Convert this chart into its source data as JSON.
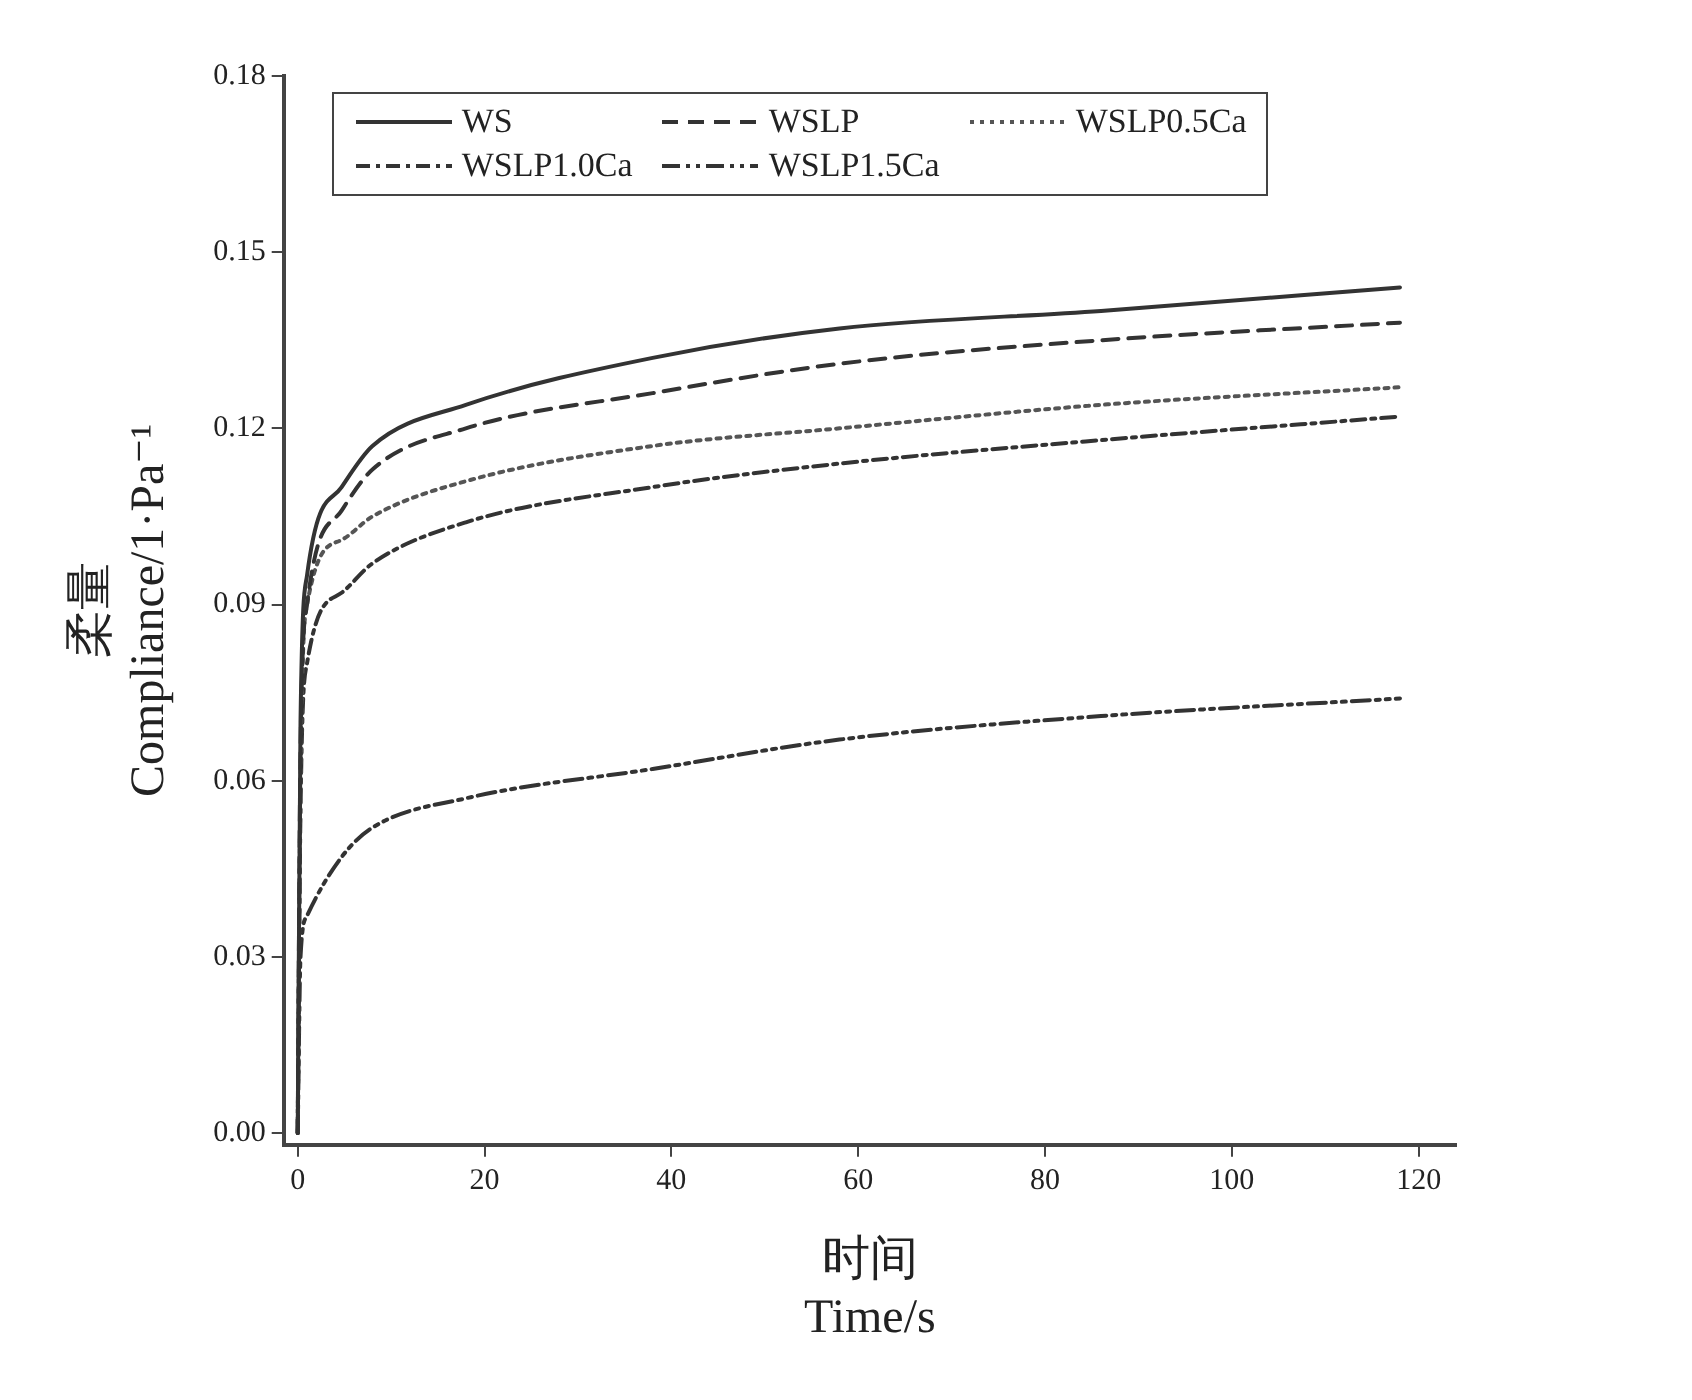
{
  "chart_data": {
    "type": "line",
    "xlabel": "时间\nTime/s",
    "ylabel": "柔量\nCompliance/1·Pa⁻¹",
    "x": [
      0,
      0.3,
      1,
      4.7,
      8,
      18,
      38,
      58,
      86,
      118
    ],
    "series": [
      {
        "name": "WS",
        "color": "#333333",
        "line_style": "solid",
        "values": [
          0,
          0.07,
          0.095,
          0.11,
          0.117,
          0.124,
          0.132,
          0.137,
          0.14,
          0.144
        ]
      },
      {
        "name": "WSLP",
        "color": "#333333",
        "line_style": "dashed",
        "values": [
          0,
          0.065,
          0.09,
          0.106,
          0.113,
          0.12,
          0.126,
          0.131,
          0.135,
          0.138
        ]
      },
      {
        "name": "WSLP0.5Ca",
        "color": "#555555",
        "line_style": "dotted",
        "values": [
          0,
          0.06,
          0.09,
          0.101,
          0.105,
          0.111,
          0.117,
          0.12,
          0.124,
          0.127
        ]
      },
      {
        "name": "WSLP1.0Ca",
        "color": "#333333",
        "line_style": "dashdot",
        "values": [
          0,
          0.055,
          0.08,
          0.092,
          0.097,
          0.104,
          0.11,
          0.114,
          0.118,
          0.122
        ]
      },
      {
        "name": "WSLP1.5Ca",
        "color": "#333333",
        "line_style": "dashdotdot",
        "values": [
          0,
          0.03,
          0.037,
          0.047,
          0.052,
          0.057,
          0.062,
          0.067,
          0.071,
          0.074
        ]
      }
    ],
    "xlim": [
      -1.5,
      124
    ],
    "xticks": [
      0,
      20,
      40,
      60,
      80,
      100,
      120
    ],
    "ylim": [
      -0.002,
      0.18
    ],
    "yticks": [
      {
        "value": 0,
        "label": "0.00"
      },
      0.03,
      0.06,
      0.09,
      0.12,
      0.15,
      0.18
    ],
    "grid": false,
    "legend": "top",
    "marker": "none"
  }
}
